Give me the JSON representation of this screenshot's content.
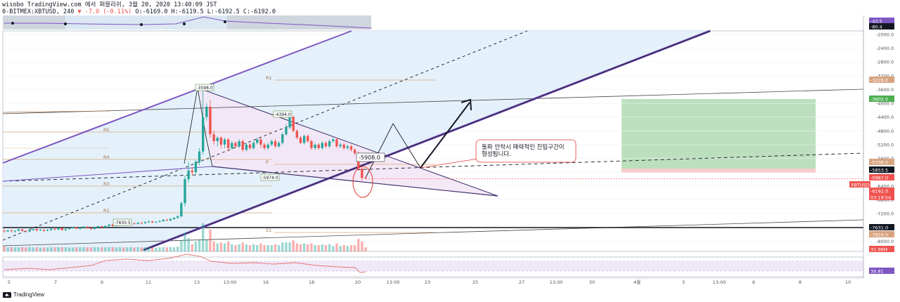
{
  "header": {
    "line1": "wisobo TradingView.com 에서 퍼블리쉬, 3월 20, 2020 13:40:09 JST",
    "line2_prefix": "0-BITMEX:XBTUSD, 240",
    "line2_change": "▼ -7.0 (-0.11%)",
    "line2_ohlc": "O:-6169.0 H:-6119.5 L:-6192.5 C:-6192.0"
  },
  "footer": {
    "brand": "TradingView"
  },
  "colors": {
    "up": "#26a69a",
    "down": "#ef5350",
    "channel": "#7e57c2",
    "fibo": "#d4a070",
    "target_box": "#a5d6a7",
    "stop_box": "#f4c7c3",
    "channel_fill": "#e1f0fb",
    "triangle_fill": "#f3e5f5"
  },
  "chart_data": {
    "type": "line",
    "title": "",
    "symbol": "XBTUSD",
    "y_axis_inverted": true,
    "ylim": [
      -8300,
      -1900
    ],
    "x_tick_labels": [
      "5",
      "7",
      "9",
      "11",
      "13",
      "13:00",
      "16",
      "18",
      "20",
      "13:00",
      "23",
      "25",
      "27",
      "13:00",
      "30",
      "4월",
      "3",
      "13:00",
      "6",
      "8",
      "10"
    ],
    "y_tick_labels": [
      "-2000.0",
      "-2400.0",
      "-2800.0",
      "-3200.0",
      "-3600.0",
      "-4000.0",
      "-4400.0",
      "-4800.0",
      "-5200.0",
      "-5600.0",
      "-6000.0",
      "-6400.0",
      "-6800.0",
      "-7200.0",
      "-7600.0",
      "-8000.0"
    ],
    "price_labels": [
      {
        "text": "-43.5",
        "kind": "rsi"
      },
      {
        "text": "-80.4",
        "kind": "nav"
      },
      {
        "text": "-3228.0",
        "kind": "fibo"
      },
      {
        "text": "-3805.0",
        "kind": "target"
      },
      {
        "text": "-5706.5",
        "kind": "fibo"
      },
      {
        "text": "-5853.5",
        "kind": "dark"
      },
      {
        "text": "-5987.0",
        "kind": "down"
      },
      {
        "text": "XBTUSD",
        "kind": "down"
      },
      {
        "text": "-6192.0",
        "kind": "down"
      },
      {
        "text": "03:19:54",
        "kind": "down"
      },
      {
        "text": "-7631.0",
        "kind": "dark"
      },
      {
        "text": "-7816.5",
        "kind": "fibo"
      },
      {
        "text": "31.96M",
        "kind": "down"
      },
      {
        "text": "34.81",
        "kind": "rsi"
      }
    ],
    "fib_levels": [
      "R1",
      "R5",
      "R4",
      "P",
      "R3",
      "R2",
      "S1"
    ],
    "annotations": {
      "high_label": "-3598.0",
      "mid_high_label": "-4394.0",
      "p_label": "-5974.0",
      "low_label": "-7830.5",
      "callout_price": "-5908.0",
      "note": "돌파 안착시 매력적인 진입구간이\n형성됩니다."
    },
    "candles": [
      [
        -7700,
        -7720,
        -7640,
        -7760
      ],
      [
        -7720,
        -7690,
        -7670,
        -7740
      ],
      [
        -7690,
        -7710,
        -7660,
        -7750
      ],
      [
        -7710,
        -7700,
        -7680,
        -7760
      ],
      [
        -7700,
        -7660,
        -7640,
        -7720
      ],
      [
        -7660,
        -7700,
        -7640,
        -7730
      ],
      [
        -7700,
        -7720,
        -7690,
        -7760
      ],
      [
        -7720,
        -7680,
        -7660,
        -7750
      ],
      [
        -7680,
        -7650,
        -7630,
        -7700
      ],
      [
        -7650,
        -7690,
        -7640,
        -7720
      ],
      [
        -7690,
        -7670,
        -7650,
        -7710
      ],
      [
        -7670,
        -7700,
        -7660,
        -7730
      ],
      [
        -7700,
        -7680,
        -7650,
        -7720
      ],
      [
        -7680,
        -7640,
        -7620,
        -7700
      ],
      [
        -7640,
        -7660,
        -7610,
        -7690
      ],
      [
        -7660,
        -7620,
        -7600,
        -7680
      ],
      [
        -7620,
        -7680,
        -7610,
        -7700
      ],
      [
        -7680,
        -7650,
        -7630,
        -7710
      ],
      [
        -7650,
        -7620,
        -7600,
        -7670
      ],
      [
        -7620,
        -7600,
        -7580,
        -7650
      ],
      [
        -7600,
        -7640,
        -7590,
        -7660
      ],
      [
        -7640,
        -7610,
        -7590,
        -7670
      ],
      [
        -7610,
        -7580,
        -7560,
        -7640
      ],
      [
        -7580,
        -7620,
        -7570,
        -7650
      ],
      [
        -7620,
        -7650,
        -7600,
        -7680
      ],
      [
        -7650,
        -7600,
        -7580,
        -7670
      ],
      [
        -7600,
        -7570,
        -7550,
        -7630
      ],
      [
        -7570,
        -7600,
        -7560,
        -7640
      ],
      [
        -7600,
        -7560,
        -7540,
        -7620
      ],
      [
        -7560,
        -7520,
        -7500,
        -7590
      ],
      [
        -7520,
        -7560,
        -7500,
        -7590
      ],
      [
        -7560,
        -7540,
        -7510,
        -7580
      ],
      [
        -7540,
        -7500,
        -7480,
        -7570
      ],
      [
        -7500,
        -7540,
        -7490,
        -7560
      ],
      [
        -7540,
        -7520,
        -7490,
        -7560
      ],
      [
        -7520,
        -7480,
        -7450,
        -7540
      ],
      [
        -7480,
        -7500,
        -7460,
        -7530
      ],
      [
        -7500,
        -7470,
        -7440,
        -7520
      ],
      [
        -7470,
        -7480,
        -7440,
        -7510
      ],
      [
        -7480,
        -7450,
        -7420,
        -7500
      ],
      [
        -7450,
        -7430,
        -7400,
        -7470
      ],
      [
        -7430,
        -7460,
        -7410,
        -7480
      ],
      [
        -7460,
        -7440,
        -7420,
        -7470
      ],
      [
        -7440,
        -7420,
        -7390,
        -7460
      ],
      [
        -7420,
        -7380,
        -7360,
        -7440
      ],
      [
        -7380,
        -7400,
        -7350,
        -7420
      ],
      [
        -7400,
        -7360,
        -7330,
        -7420
      ],
      [
        -7360,
        -7320,
        -7300,
        -7380
      ],
      [
        -7320,
        -7280,
        -7250,
        -7360
      ],
      [
        -7280,
        -6900,
        -6850,
        -7320
      ],
      [
        -6900,
        -6200,
        -6100,
        -7000
      ],
      [
        -6200,
        -5950,
        -5700,
        -6300
      ],
      [
        -5950,
        -6000,
        -5850,
        -6100
      ],
      [
        -6000,
        -5700,
        -5650,
        -6050
      ],
      [
        -5700,
        -5400,
        -5300,
        -5800
      ],
      [
        -5400,
        -4400,
        -3598,
        -5500
      ],
      [
        -4400,
        -4100,
        -4000,
        -4500
      ],
      [
        -4100,
        -4900,
        -3900,
        -5000
      ],
      [
        -4900,
        -5100,
        -4800,
        -5200
      ],
      [
        -5100,
        -5000,
        -4950,
        -5250
      ],
      [
        -5000,
        -5200,
        -4950,
        -5300
      ],
      [
        -5200,
        -5050,
        -5000,
        -5300
      ],
      [
        -5050,
        -5300,
        -5000,
        -5400
      ],
      [
        -5300,
        -5150,
        -5100,
        -5350
      ],
      [
        -5150,
        -5250,
        -5100,
        -5300
      ],
      [
        -5250,
        -5100,
        -5050,
        -5300
      ],
      [
        -5100,
        -5350,
        -5050,
        -5400
      ],
      [
        -5350,
        -5200,
        -5150,
        -5400
      ],
      [
        -5200,
        -5300,
        -5150,
        -5350
      ],
      [
        -5300,
        -5150,
        -5100,
        -5350
      ],
      [
        -5150,
        -5050,
        -5000,
        -5200
      ],
      [
        -5050,
        -5200,
        -5000,
        -5300
      ],
      [
        -5200,
        -5300,
        -5150,
        -5350
      ],
      [
        -5300,
        -5200,
        -5150,
        -5350
      ],
      [
        -5200,
        -5100,
        -5050,
        -5250
      ],
      [
        -5100,
        -5250,
        -5050,
        -5300
      ],
      [
        -5250,
        -5150,
        -5100,
        -5300
      ],
      [
        -5150,
        -4900,
        -4850,
        -5200
      ],
      [
        -4900,
        -4700,
        -4600,
        -4950
      ],
      [
        -4700,
        -4394,
        -4394,
        -4750
      ],
      [
        -4394,
        -4800,
        -4380,
        -4850
      ],
      [
        -4800,
        -5000,
        -4750,
        -5050
      ],
      [
        -5000,
        -5150,
        -4950,
        -5200
      ],
      [
        -5150,
        -4950,
        -4900,
        -5200
      ],
      [
        -4950,
        -5100,
        -4900,
        -5150
      ],
      [
        -5100,
        -5300,
        -5050,
        -5350
      ],
      [
        -5300,
        -5200,
        -5150,
        -5350
      ],
      [
        -5200,
        -5300,
        -5150,
        -5350
      ],
      [
        -5300,
        -5150,
        -5100,
        -5350
      ],
      [
        -5150,
        -5250,
        -5100,
        -5300
      ],
      [
        -5250,
        -5100,
        -5050,
        -5300
      ],
      [
        -5100,
        -5050,
        -5000,
        -5150
      ],
      [
        -5050,
        -5250,
        -5000,
        -5300
      ],
      [
        -5250,
        -5200,
        -5150,
        -5300
      ],
      [
        -5200,
        -5300,
        -5150,
        -5350
      ],
      [
        -5300,
        -5250,
        -5200,
        -5350
      ],
      [
        -5250,
        -5350,
        -5200,
        -5400
      ],
      [
        -5350,
        -5450,
        -5300,
        -5500
      ],
      [
        -5450,
        -5900,
        -5400,
        -5950
      ],
      [
        -5900,
        -6169,
        -5850,
        -6250
      ],
      [
        -6169,
        -6192,
        -6119.5,
        -6192.5
      ]
    ],
    "volume_max_label": "31.96M",
    "rsi_last": "34.81"
  }
}
